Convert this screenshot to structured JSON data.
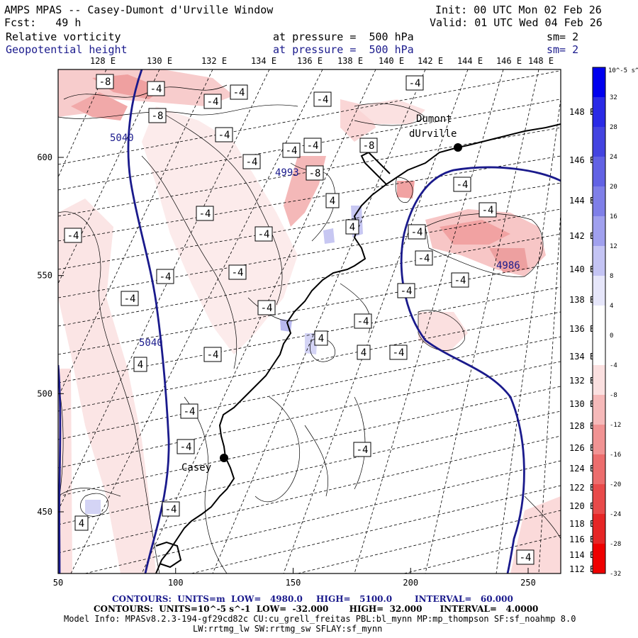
{
  "header": {
    "title": "AMPS MPAS -- Casey-Dumont d'Urville Window",
    "init": "Init: 00 UTC Mon 02 Feb 26",
    "fcst": "Fcst:   49 h",
    "valid": "Valid: 01 UTC Wed 04 Feb 26",
    "field1": "Relative vorticity",
    "field1_level": "at pressure =  500 hPa",
    "field1_sm": "sm= 2",
    "field2": "Geopotential height",
    "field2_level": "at pressure =  500 hPa",
    "field2_sm": "sm= 2"
  },
  "lon_labels": [
    "128 E",
    "130 E",
    "132 E",
    "134 E",
    "136 E",
    "138 E",
    "140 E",
    "142 E",
    "144 E",
    "146 E",
    "148 E"
  ],
  "lat_labels_right": [
    "148 E",
    "146 E",
    "144 E",
    "142 E",
    "140 E",
    "138 E",
    "136 E",
    "134 E",
    "132 E",
    "130 E",
    "128 E",
    "126 E",
    "124 E",
    "122 E",
    "120 E",
    "118 E",
    "116 E",
    "114 E",
    "112 E"
  ],
  "x_axis": {
    "ticks": [
      "50",
      "100",
      "150",
      "200",
      "250"
    ]
  },
  "y_axis": {
    "ticks": [
      "600",
      "550",
      "500",
      "450"
    ]
  },
  "colorbar": {
    "unit": "10^-5 s^-1",
    "labels": [
      "32",
      "28",
      "24",
      "20",
      "16",
      "12",
      "8",
      "4",
      "0",
      "-4",
      "-8",
      "-12",
      "-16",
      "-20",
      "-24",
      "-28",
      "-32"
    ],
    "colors": [
      "#0000ee",
      "#2a2ae6",
      "#4444e0",
      "#6262e4",
      "#7f7fe8",
      "#a0a0ee",
      "#c4c4f4",
      "#e6e6fa",
      "#ffffff",
      "#ffffff",
      "#fbe0e0",
      "#f6b9b9",
      "#f19393",
      "#ec6d6d",
      "#e84a4a",
      "#e62626",
      "#ee0000"
    ]
  },
  "places": [
    {
      "name": "Dumont\ndUrville",
      "label1": "Dumont",
      "label2": "dUrville"
    },
    {
      "name": "Casey",
      "label1": "Casey"
    }
  ],
  "height_labels": [
    "5040",
    "4993",
    "5040",
    "4986"
  ],
  "vort_labels": [
    "-8",
    "-4",
    "-4",
    "-4",
    "-8",
    "-4",
    "-4",
    "-4",
    "-4",
    "-8",
    "-4",
    "-4",
    "-4",
    "-4",
    "-4",
    "4",
    "-4",
    "-4",
    "-4",
    "-4",
    "-4",
    "-4",
    "-4",
    "-8",
    "-4",
    "-4",
    "-4",
    "4",
    "-4",
    "4",
    "4",
    "-4",
    "-4",
    "-4",
    "-4",
    "-4",
    "4",
    "-4",
    "4",
    "-4"
  ],
  "footer": {
    "line1_a": "CONTOURS:  UNITS=m  LOW=   4980.0",
    "line1_b": "HIGH=   5100.0",
    "line1_c": "INTERVAL=   60.000",
    "line2": "CONTOURS:  UNITS=10^-5 s^-1  LOW=  -32.000       HIGH=  32.000      INTERVAL=   4.0000",
    "line3": "Model Info: MPASv8.2.3-194-gf29cd82c CU:cu_grell_freitas PBL:bl_mynn MP:mp_thompson SF:sf_noahmp 8.0",
    "line4": "LW:rrtmg_lw SW:rrtmg_sw SFLAY:sf_mynn"
  }
}
